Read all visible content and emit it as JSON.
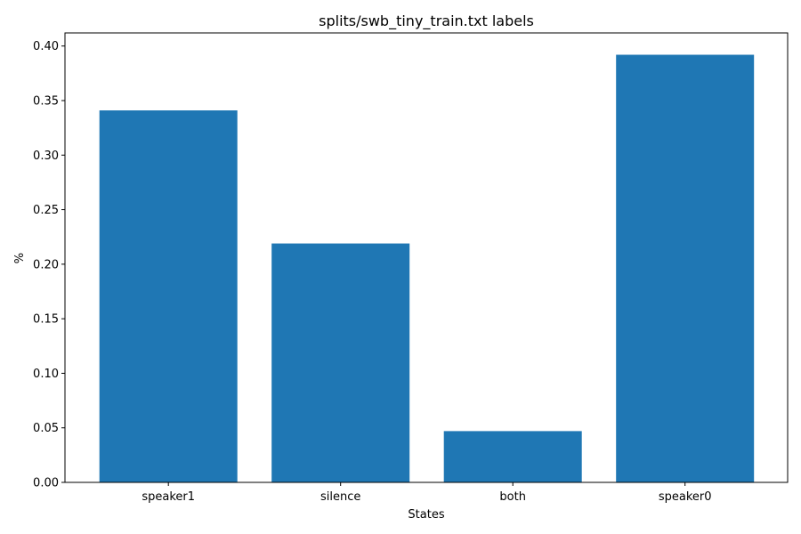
{
  "chart_data": {
    "type": "bar",
    "title": "splits/swb_tiny_train.txt labels",
    "xlabel": "States",
    "ylabel": "%",
    "categories": [
      "speaker1",
      "silence",
      "both",
      "speaker0"
    ],
    "values": [
      0.341,
      0.219,
      0.047,
      0.392
    ],
    "ylim": [
      0,
      0.412
    ],
    "yticks": [
      0.0,
      0.05,
      0.1,
      0.15,
      0.2,
      0.25,
      0.3,
      0.35,
      0.4
    ],
    "ytick_labels": [
      "0.00",
      "0.05",
      "0.10",
      "0.15",
      "0.20",
      "0.25",
      "0.30",
      "0.35",
      "0.40"
    ],
    "grid": false,
    "bar_color": "#1f77b4"
  }
}
